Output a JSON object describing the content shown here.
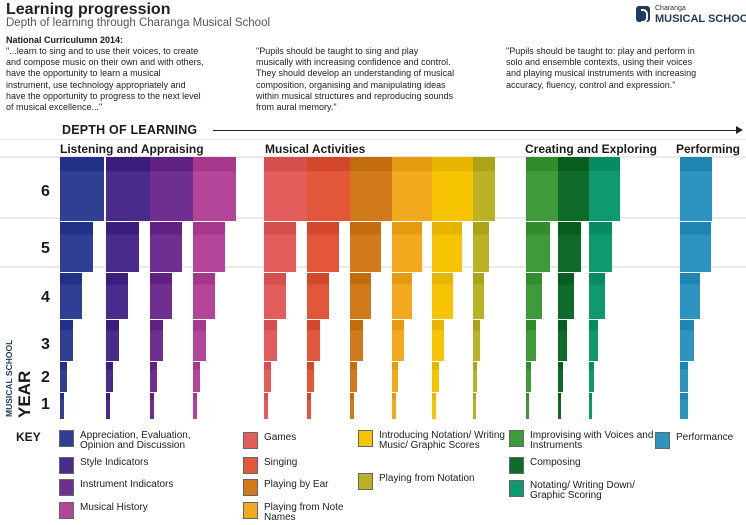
{
  "header": {
    "title": "Learning progression",
    "subtitle": "Depth of learning through Charanga Musical School"
  },
  "logo": {
    "brand": "Charanga",
    "school": "MUSICAL SCHOOL"
  },
  "national_curriculum": {
    "heading": "National Curriculumn 2014:",
    "quotes": [
      [
        "\"...learn to sing and to use their voices, to create",
        "and compose music on their own and with others,",
        "have the opportunity to learn a musical",
        "instrument, use technology appropriately and",
        "have the opportunity to progress to the next level",
        "of musical excellence...\""
      ],
      [
        "\"Pupils should be taught to sing and play",
        "musically with increasing confidence and control.",
        "They should develop an understanding of musical",
        "composition, organising and manipulating ideas",
        "within musical structures and reproducing sounds",
        "from aural memory.\""
      ],
      [
        "\"Pupils should be taught to: play and perform in",
        "solo and ensemble contexts, using their voices",
        "and playing musical instruments with increasing",
        "accuracy, fluency, control and expression.\""
      ]
    ]
  },
  "depth_label": "DEPTH OF LEARNING",
  "categories": [
    "Listening and Appraising",
    "Musical Activities",
    "Creating and Exploring",
    "Performing"
  ],
  "y_axis": {
    "top": "MUSICAL SCHOOL",
    "bottom": "YEAR",
    "years": [
      "6",
      "5",
      "4",
      "3",
      "2",
      "1"
    ]
  },
  "key": {
    "title": "KEY",
    "items": [
      {
        "label": "Appreciation, Evaluation, Opinion and Discussion",
        "color": "#2e3f94"
      },
      {
        "label": "Style Indicators",
        "color": "#4a2a8a"
      },
      {
        "label": "Instrument Indicators",
        "color": "#6f2f91"
      },
      {
        "label": "Musical History",
        "color": "#b4469a"
      },
      {
        "label": "Games",
        "color": "#e35d5d"
      },
      {
        "label": "Singing",
        "color": "#e2563a"
      },
      {
        "label": "Playing by Ear",
        "color": "#d07a1c"
      },
      {
        "label": "Playing from Note Names",
        "color": "#f2a91d"
      },
      {
        "label": "Introducing Notation/ Writing Music/ Graphic Scores",
        "color": "#f6c400"
      },
      {
        "label": "Playing from Notation",
        "color": "#b8b224"
      },
      {
        "label": "Improvising with Voices and Instruments",
        "color": "#3f9a3a"
      },
      {
        "label": "Composing",
        "color": "#0f6b2c"
      },
      {
        "label": "Notating/ Writing Down/ Graphic Scoring",
        "color": "#0e9a6e"
      },
      {
        "label": "Performance",
        "color": "#2d93c1"
      }
    ]
  }
}
